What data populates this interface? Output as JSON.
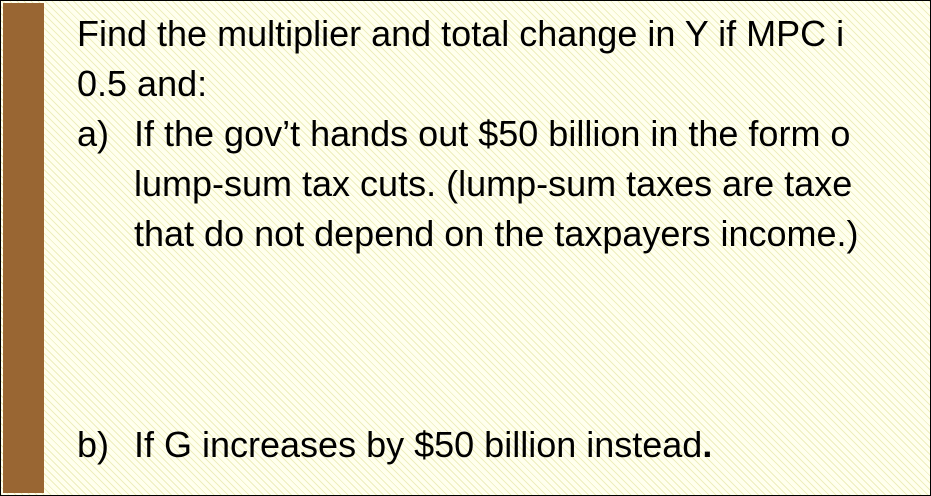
{
  "intro": {
    "line1": "Find the multiplier and total change in Y if MPC i",
    "line2": "0.5 and:"
  },
  "items": [
    {
      "marker": "a)",
      "lines": [
        "If the gov’t hands out $50 billion in the form o",
        "lump-sum tax cuts. (lump-sum taxes are taxe",
        "that do not depend on the taxpayers income.)"
      ]
    },
    {
      "marker": "b)",
      "text": "If G increases by $50 billion instead",
      "end_punct": "."
    }
  ],
  "colors": {
    "side_bar": "#996633",
    "background": "#ffffee",
    "text": "#000000"
  }
}
